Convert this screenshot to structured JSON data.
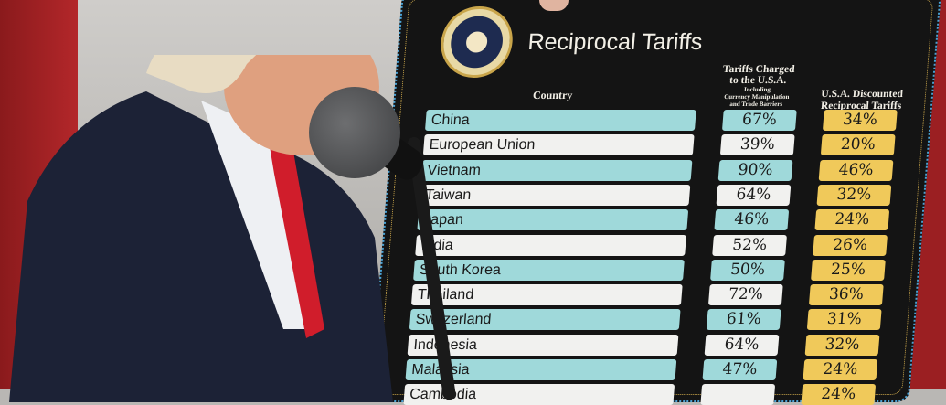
{
  "board": {
    "seal_text": "SEAL OF THE PRESIDENT OF THE UNITED STATES",
    "title": "Reciprocal Tariffs",
    "headers": {
      "country": "Country",
      "charged_line1": "Tariffs Charged",
      "charged_line2": "to the U.S.A.",
      "charged_sub1": "Including",
      "charged_sub2": "Currency Manipulation",
      "charged_sub3": "and Trade Barriers",
      "discounted_line1": "U.S.A. Discounted",
      "discounted_line2": "Reciprocal Tariffs"
    },
    "rows": [
      {
        "country": "China",
        "charged": "67%",
        "discounted": "34%"
      },
      {
        "country": "European Union",
        "charged": "39%",
        "discounted": "20%"
      },
      {
        "country": "Vietnam",
        "charged": "90%",
        "discounted": "46%"
      },
      {
        "country": "Taiwan",
        "charged": "64%",
        "discounted": "32%"
      },
      {
        "country": "Japan",
        "charged": "46%",
        "discounted": "24%"
      },
      {
        "country": "India",
        "charged": "52%",
        "discounted": "26%"
      },
      {
        "country": "South Korea",
        "charged": "50%",
        "discounted": "25%"
      },
      {
        "country": "Thailand",
        "charged": "72%",
        "discounted": "36%"
      },
      {
        "country": "Switzerland",
        "charged": "61%",
        "discounted": "31%"
      },
      {
        "country": "Indonesia",
        "charged": "64%",
        "discounted": "32%"
      },
      {
        "country": "Malaysia",
        "charged": "47%",
        "discounted": "24%"
      },
      {
        "country": "Cambodia",
        "charged": "",
        "discounted": "24%"
      }
    ]
  },
  "colors": {
    "teal": "#9fd9da",
    "white": "#f1f1ef",
    "gold": "#f0c95a",
    "board": "#141414"
  }
}
